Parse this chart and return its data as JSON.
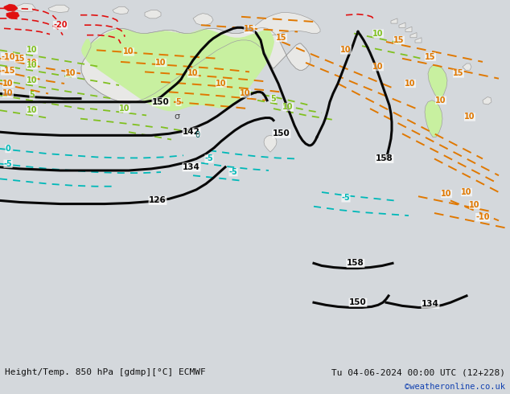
{
  "title_left": "Height/Temp. 850 hPa [gdmp][°C] ECMWF",
  "title_right": "Tu 04-06-2024 00:00 UTC (12+228)",
  "watermark": "©weatheronline.co.uk",
  "ocean_color": "#d4d8dc",
  "land_color": "#e8e8e6",
  "green_fill": "#c8f0a0",
  "fig_width": 6.34,
  "fig_height": 4.9,
  "dpi": 100,
  "bottom_bar_color": "#e0e0e0",
  "bottom_text_color": "#101010",
  "watermark_color": "#1040b0",
  "label_fontsize": 8.0,
  "watermark_fontsize": 7.5,
  "black_color": "#080808",
  "orange_color": "#e07800",
  "green_color": "#80c020",
  "cyan_color": "#00b8b8",
  "red_color": "#e01010",
  "annotation_sigma": "σ",
  "annotation_zero": "0"
}
